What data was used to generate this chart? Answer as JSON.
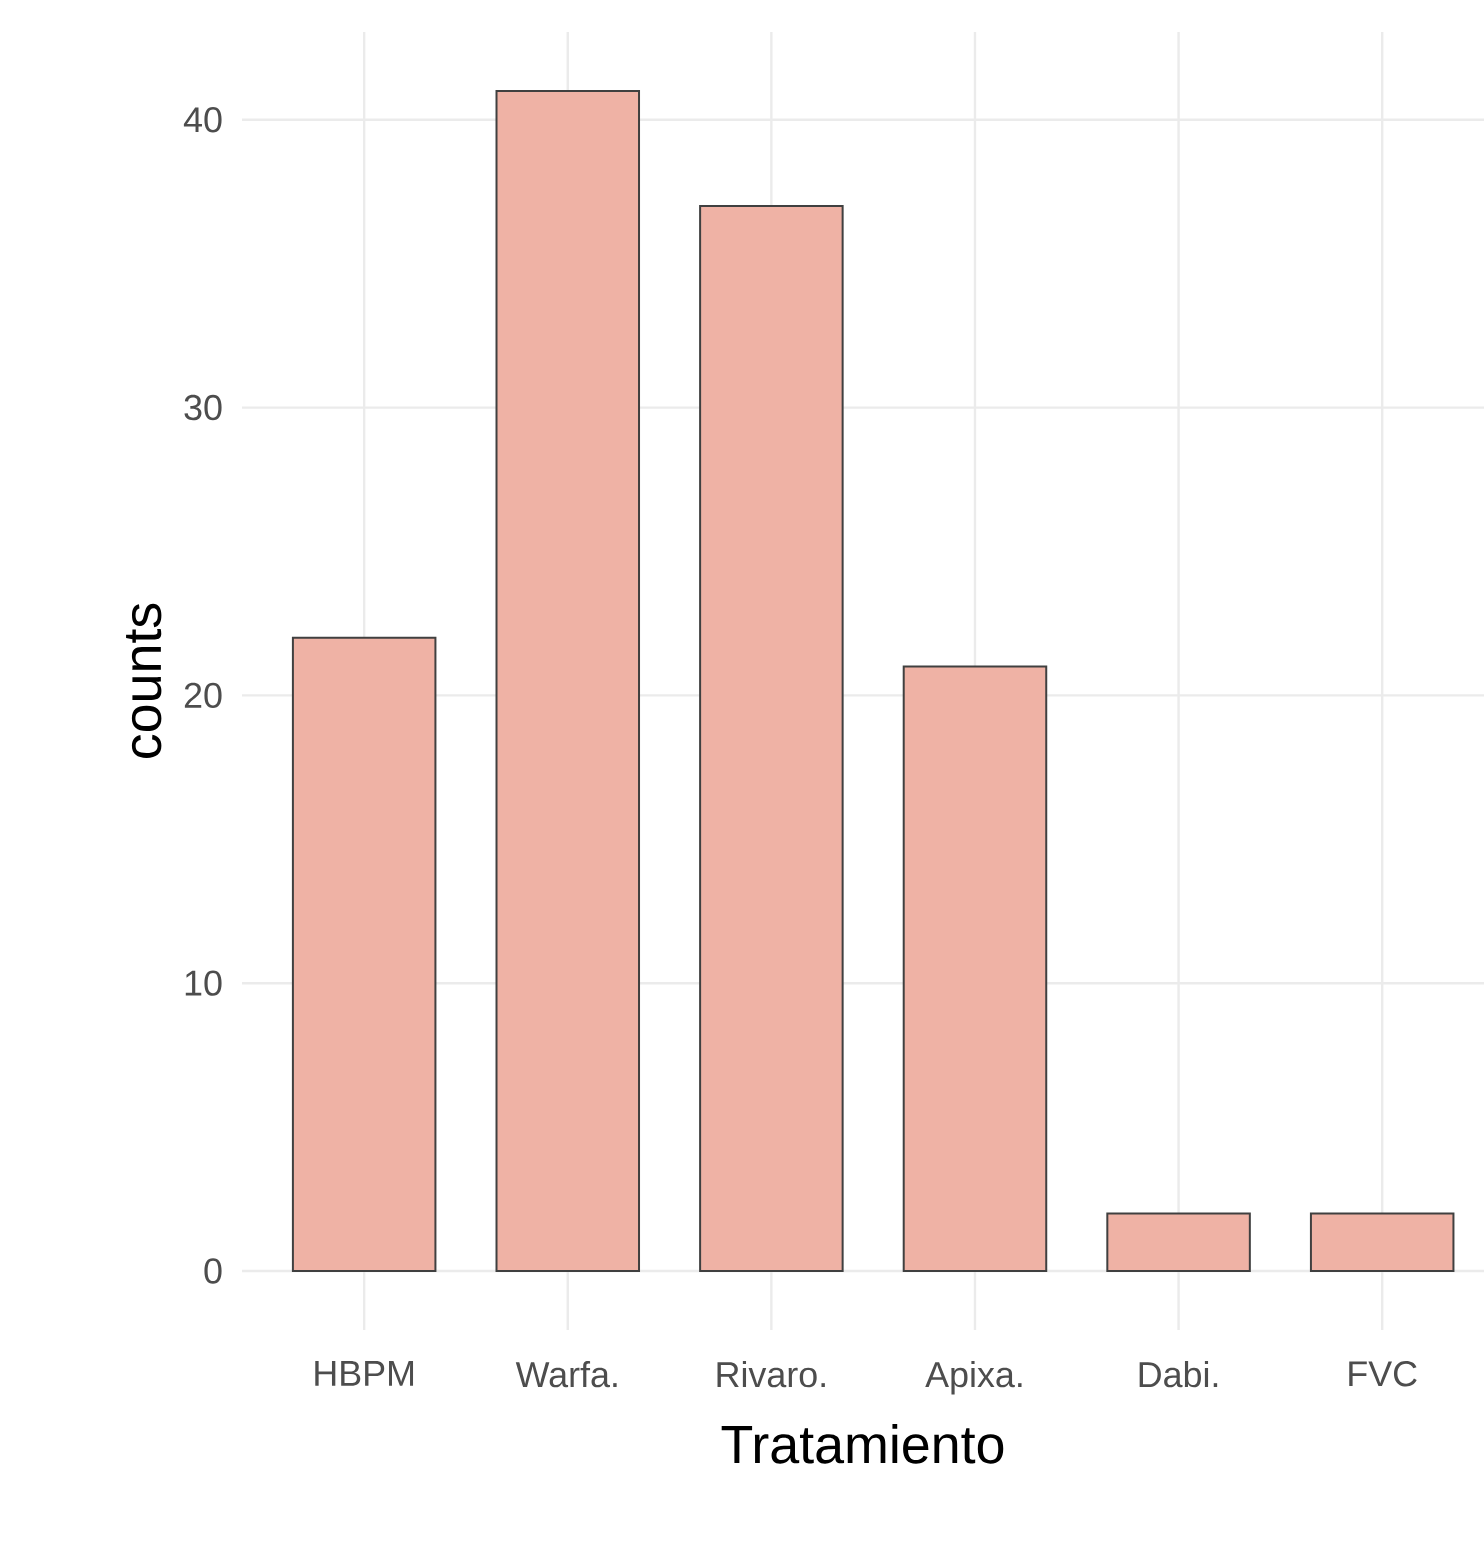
{
  "chart_data": {
    "type": "bar",
    "xlabel": "Tratamiento",
    "ylabel": "counts",
    "categories": [
      "HBPM",
      "Warfa.",
      "Rivaro.",
      "Apixa.",
      "Dabi.",
      "FVC"
    ],
    "values": [
      22,
      41,
      37,
      21,
      2,
      2
    ],
    "color": "#efb2a5",
    "ylim": [
      -2.05,
      43.05
    ],
    "yticks": [
      0,
      10,
      20,
      30,
      40
    ],
    "grid": true
  }
}
